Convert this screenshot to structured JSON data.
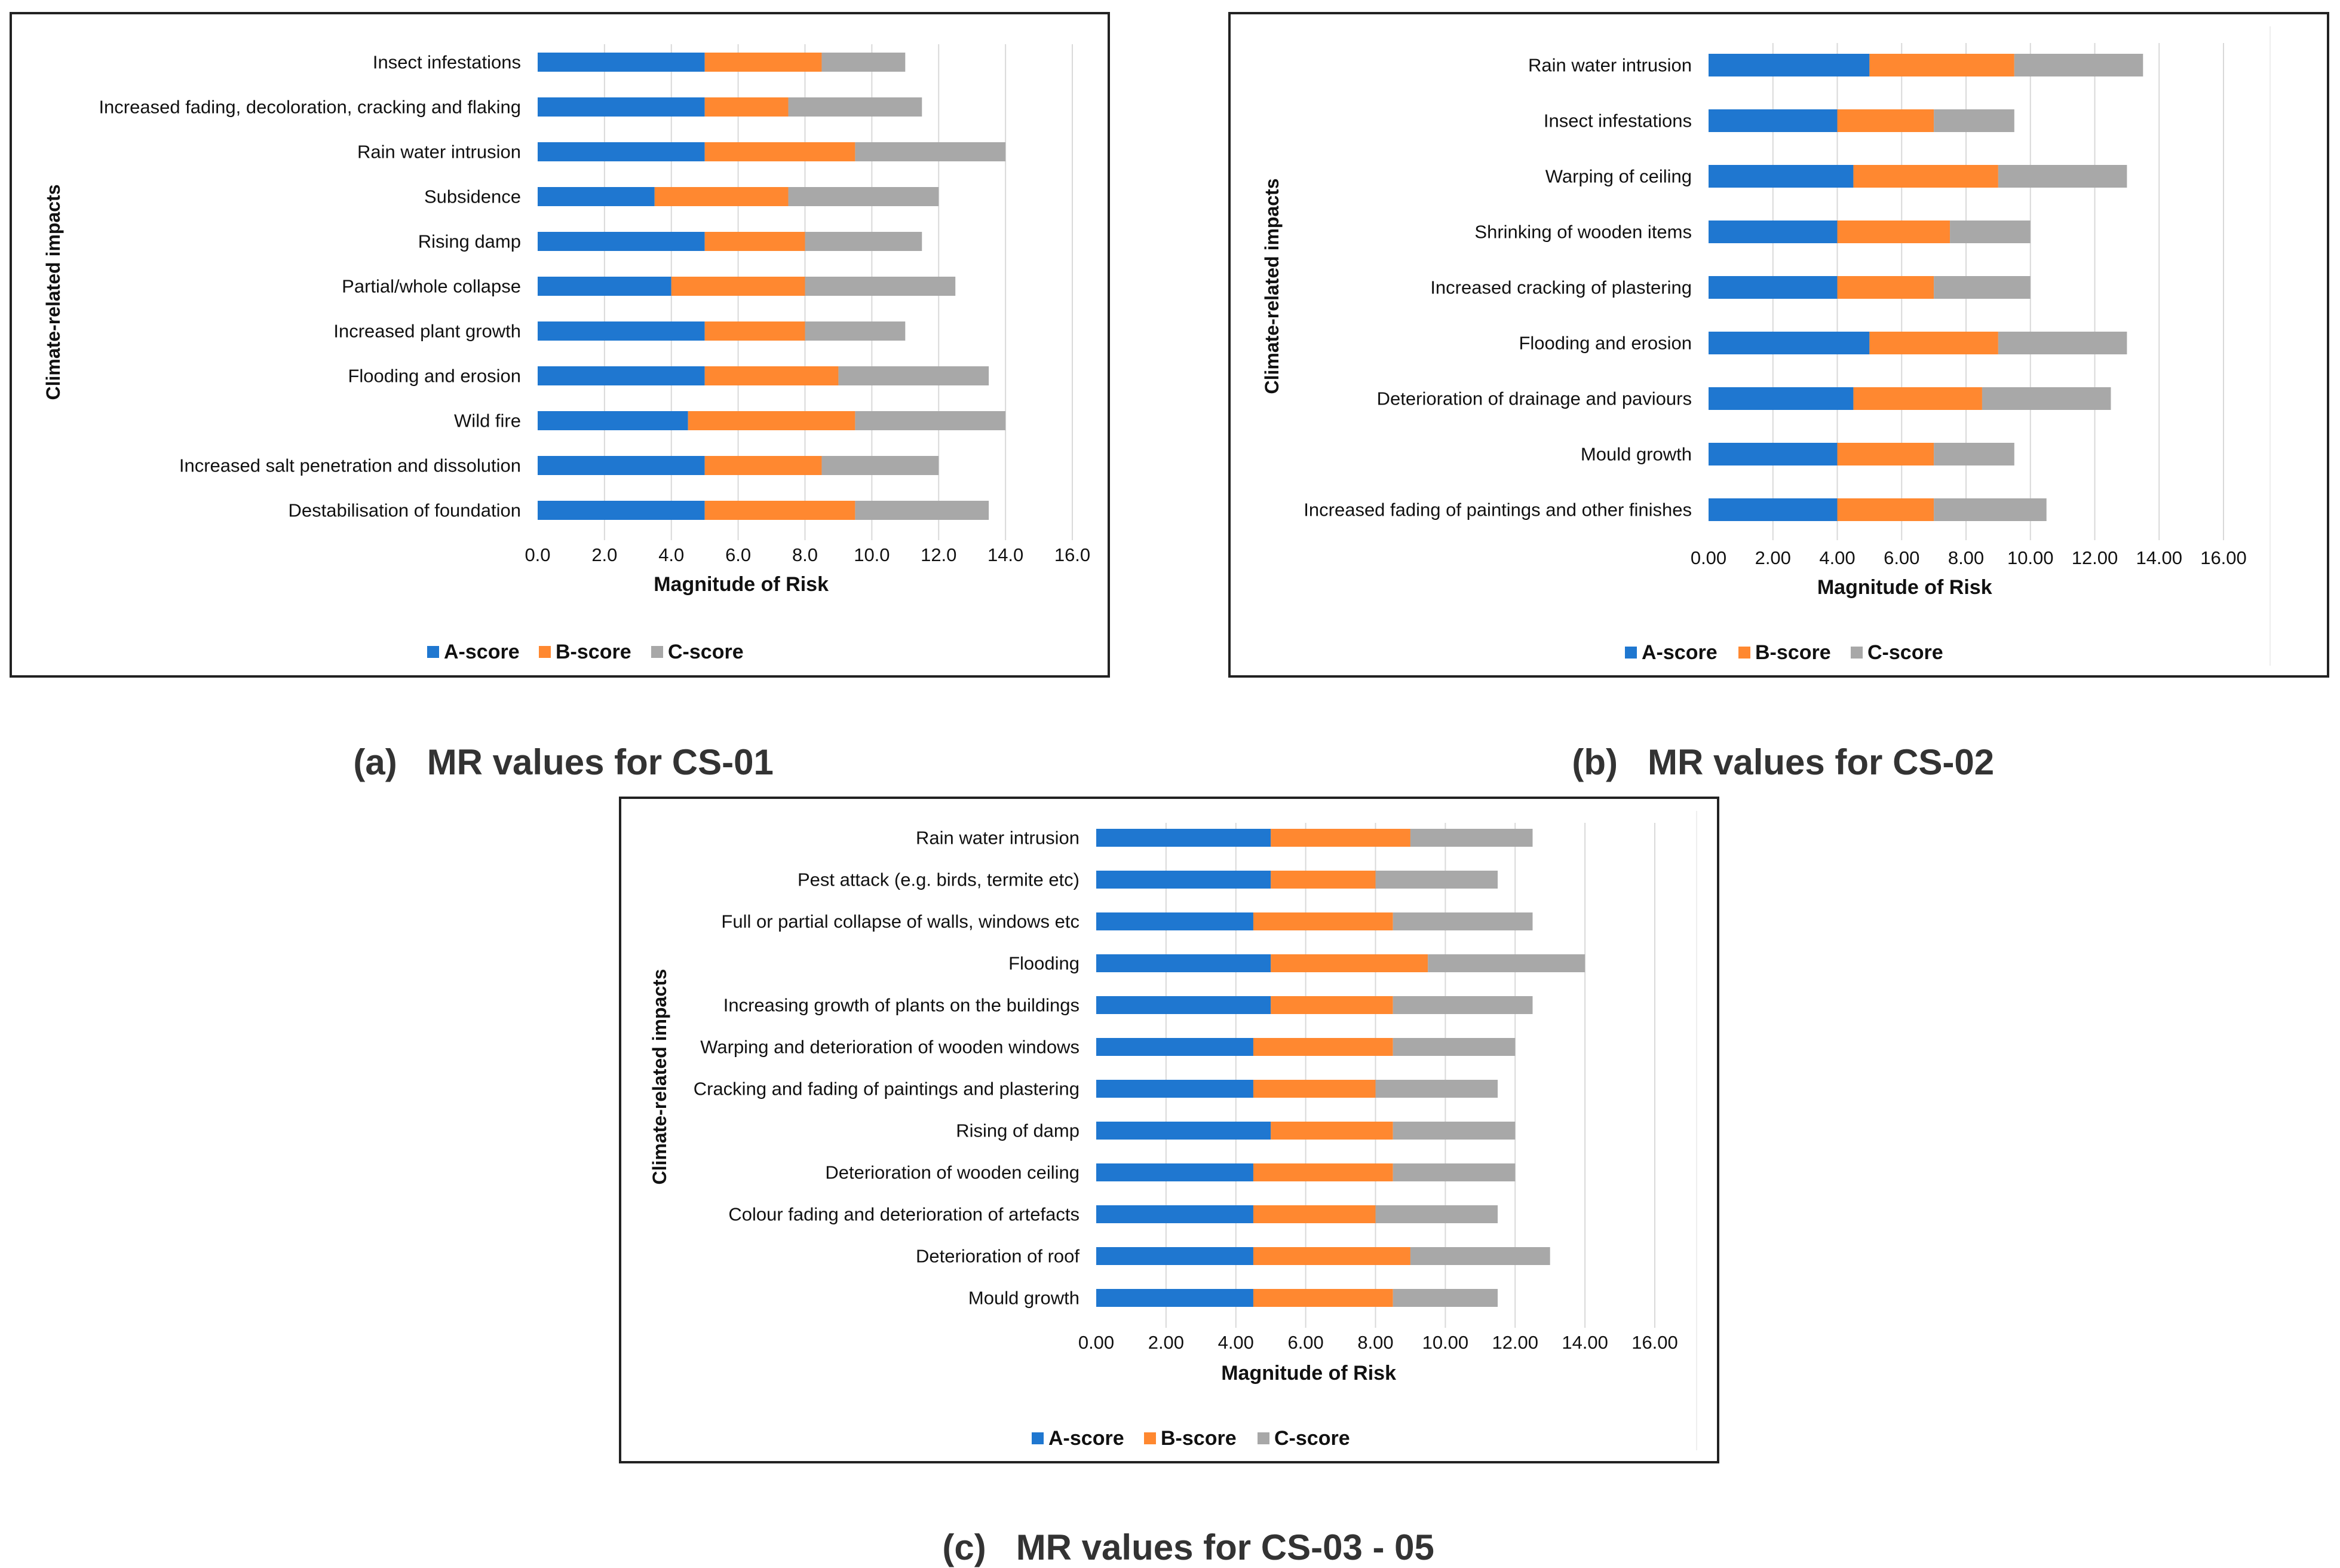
{
  "colors": {
    "a": "#1F77D0",
    "b": "#FF8830",
    "c": "#A8A8A8",
    "grid": "#D9D9D9",
    "text": "#111111"
  },
  "captions": [
    {
      "label": "(a)",
      "text": "MR values for CS-01"
    },
    {
      "label": "(b)",
      "text": "MR values for CS-02"
    },
    {
      "label": "(c)",
      "text": "MR values for CS-03 - 05"
    }
  ],
  "chart_data": [
    {
      "type": "bar",
      "orientation": "horizontal",
      "stacked": true,
      "xlabel": "Magnitude of Risk",
      "ylabel": "Climate-related impacts",
      "xlim": [
        0,
        16
      ],
      "tick_values": [
        0,
        2,
        4,
        6,
        8,
        10,
        12,
        14,
        16
      ],
      "tick_labels": [
        "0.0",
        "2.0",
        "4.0",
        "6.0",
        "8.0",
        "10.0",
        "12.0",
        "14.0",
        "16.0"
      ],
      "legend": [
        "A-score",
        "B-score",
        "C-score"
      ],
      "legend_position": "bottom",
      "categories": [
        "Insect infestations",
        "Increased fading, decoloration, cracking and flaking",
        "Rain water intrusion",
        "Subsidence",
        "Rising damp",
        "Partial/whole collapse",
        "Increased plant growth",
        "Flooding and erosion",
        "Wild fire",
        "Increased salt penetration and dissolution",
        "Destabilisation of foundation"
      ],
      "series": [
        {
          "name": "A-score",
          "values": [
            5,
            5,
            5,
            3.5,
            5,
            4,
            5,
            5,
            4.5,
            5,
            5
          ]
        },
        {
          "name": "B-score",
          "values": [
            3.5,
            2.5,
            4.5,
            4,
            3,
            4,
            3,
            4,
            5,
            3.5,
            4.5
          ]
        },
        {
          "name": "C-score",
          "values": [
            2.5,
            4,
            4.5,
            4.5,
            3.5,
            4.5,
            3,
            4.5,
            4.5,
            3.5,
            4
          ]
        }
      ]
    },
    {
      "type": "bar",
      "orientation": "horizontal",
      "stacked": true,
      "xlabel": "Magnitude of Risk",
      "ylabel": "Climate-related impacts",
      "xlim": [
        0,
        16
      ],
      "tick_values": [
        0,
        2,
        4,
        6,
        8,
        10,
        12,
        14,
        16
      ],
      "tick_labels": [
        "0.00",
        "2.00",
        "4.00",
        "6.00",
        "8.00",
        "10.00",
        "12.00",
        "14.00",
        "16.00"
      ],
      "legend": [
        "A-score",
        "B-score",
        "C-score"
      ],
      "legend_position": "bottom",
      "categories": [
        "Rain water intrusion",
        "Insect infestations",
        "Warping of ceiling",
        "Shrinking of wooden items",
        "Increased cracking of plastering",
        "Flooding and erosion",
        "Deterioration of drainage and paviours",
        "Mould growth",
        "Increased fading of paintings and other finishes"
      ],
      "series": [
        {
          "name": "A-score",
          "values": [
            5,
            4,
            4.5,
            4,
            4,
            5,
            4.5,
            4,
            4
          ]
        },
        {
          "name": "B-score",
          "values": [
            4.5,
            3,
            4.5,
            3.5,
            3,
            4,
            4,
            3,
            3
          ]
        },
        {
          "name": "C-score",
          "values": [
            4,
            2.5,
            4,
            2.5,
            3,
            4,
            4,
            2.5,
            3.5
          ]
        }
      ]
    },
    {
      "type": "bar",
      "orientation": "horizontal",
      "stacked": true,
      "xlabel": "Magnitude of Risk",
      "ylabel": "Climate-related impacts",
      "xlim": [
        0,
        16
      ],
      "tick_values": [
        0,
        2,
        4,
        6,
        8,
        10,
        12,
        14,
        16
      ],
      "tick_labels": [
        "0.00",
        "2.00",
        "4.00",
        "6.00",
        "8.00",
        "10.00",
        "12.00",
        "14.00",
        "16.00"
      ],
      "legend": [
        "A-score",
        "B-score",
        "C-score"
      ],
      "legend_position": "bottom",
      "categories": [
        "Rain water intrusion",
        "Pest attack (e.g. birds, termite etc)",
        "Full or partial collapse of walls, windows etc",
        "Flooding",
        "Increasing growth of plants on the buildings",
        "Warping and deterioration of wooden windows",
        "Cracking and fading of paintings and plastering",
        "Rising of damp",
        "Deterioration of wooden ceiling",
        "Colour fading and deterioration of artefacts",
        "Deterioration of roof",
        "Mould growth"
      ],
      "series": [
        {
          "name": "A-score",
          "values": [
            5,
            5,
            4.5,
            5,
            5,
            4.5,
            4.5,
            5,
            4.5,
            4.5,
            4.5,
            4.5
          ]
        },
        {
          "name": "B-score",
          "values": [
            4,
            3,
            4,
            4.5,
            3.5,
            4,
            3.5,
            3.5,
            4,
            3.5,
            4.5,
            4
          ]
        },
        {
          "name": "C-score",
          "values": [
            3.5,
            3.5,
            4,
            4.5,
            4,
            3.5,
            3.5,
            3.5,
            3.5,
            3.5,
            4,
            3
          ]
        }
      ]
    }
  ]
}
